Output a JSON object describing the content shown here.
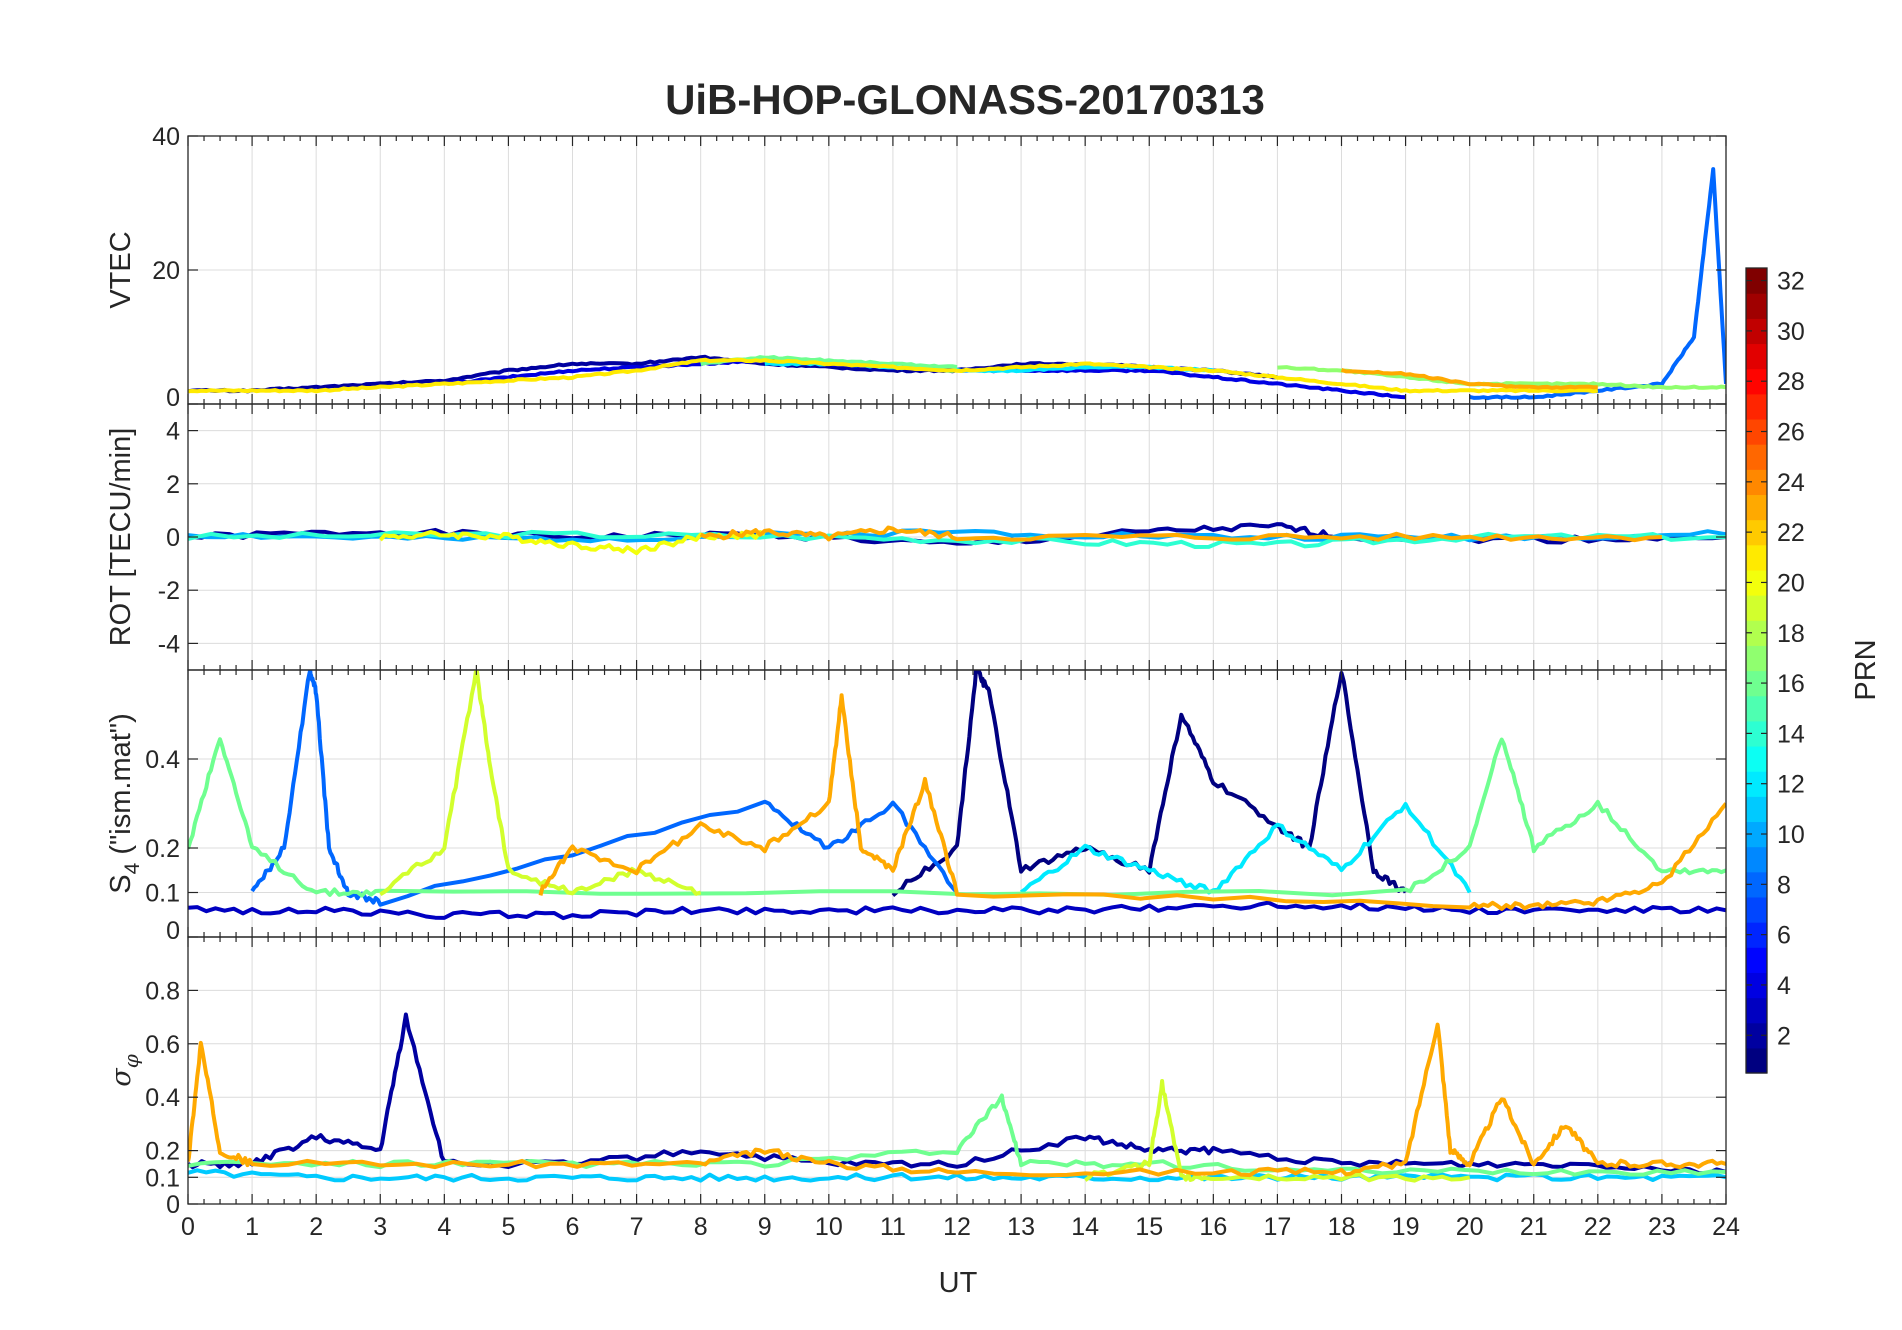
{
  "chart_data": {
    "type": "line",
    "title": "UiB-HOP-GLONASS-20170313",
    "xlabel": "UT",
    "xlim": [
      0,
      24
    ],
    "x_ticks": [
      "0",
      "1",
      "2",
      "3",
      "4",
      "5",
      "6",
      "7",
      "8",
      "9",
      "10",
      "11",
      "12",
      "13",
      "14",
      "15",
      "16",
      "17",
      "18",
      "19",
      "20",
      "21",
      "22",
      "23",
      "24"
    ],
    "grid": true,
    "panels": [
      {
        "id": "vtec",
        "ylabel": "VTEC",
        "ylim": [
          0,
          40
        ],
        "y_ticks": [
          0,
          20,
          40
        ],
        "y_tick_labels": [
          "0",
          "20",
          "40"
        ],
        "series": [
          {
            "prn": 2,
            "x": [
              0,
              1,
              2,
              3,
              4,
              5,
              6,
              7,
              8,
              9,
              10,
              11,
              12,
              13,
              14,
              15,
              16,
              17
            ],
            "y": [
              2,
              2,
              2.5,
              3,
              3.5,
              5,
              6,
              6,
              7,
              6,
              5.5,
              5,
              5,
              6,
              6,
              5.5,
              5,
              4
            ]
          },
          {
            "prn": 4,
            "x": [
              4,
              5,
              6,
              7,
              8,
              9,
              10,
              11,
              12,
              13,
              14,
              15,
              16,
              17,
              18,
              19
            ],
            "y": [
              3,
              4,
              5,
              5.5,
              6,
              6.5,
              6,
              5.5,
              5,
              5,
              5,
              5,
              4,
              3,
              2,
              1
            ]
          },
          {
            "prn": 8,
            "x": [
              20,
              21,
              22,
              23,
              23.5,
              23.8,
              24
            ],
            "y": [
              1,
              1,
              2,
              3,
              10,
              35,
              3
            ]
          },
          {
            "prn": 12,
            "x": [
              9,
              10,
              11,
              12,
              13,
              14,
              15,
              16
            ],
            "y": [
              6,
              6,
              5.5,
              5,
              5,
              5.5,
              5.5,
              5
            ]
          },
          {
            "prn": 16,
            "x": [
              8,
              9,
              10,
              11,
              12
            ],
            "y": [
              6,
              7,
              6.5,
              6,
              5.5
            ]
          },
          {
            "prn": 17,
            "x": [
              17,
              18,
              19,
              20,
              21,
              22,
              23,
              24
            ],
            "y": [
              5.5,
              5,
              4,
              3,
              3,
              3,
              2.5,
              2.5
            ]
          },
          {
            "prn": 21,
            "x": [
              0,
              1,
              2,
              3,
              4,
              5,
              6,
              7,
              8,
              9,
              10,
              11,
              12,
              13,
              14,
              15,
              16,
              17,
              18,
              19,
              20,
              21,
              22
            ],
            "y": [
              2,
              2,
              2,
              2.5,
              3,
              3.5,
              4,
              5,
              6.5,
              6.5,
              6,
              5.5,
              5,
              5.5,
              6,
              5.5,
              5,
              4,
              3,
              2,
              2,
              2,
              2
            ]
          },
          {
            "prn": 23,
            "x": [
              18,
              19,
              20,
              21,
              22
            ],
            "y": [
              5,
              4.5,
              3,
              2.5,
              2.5
            ]
          }
        ]
      },
      {
        "id": "rot",
        "ylabel": "ROT [TECU/min]",
        "ylim": [
          -5,
          5
        ],
        "y_ticks": [
          -4,
          -2,
          0,
          2,
          4
        ],
        "y_tick_labels": [
          "-4",
          "-2",
          "0",
          "2",
          "4"
        ],
        "series": [
          {
            "prn": 2,
            "x": [
              0,
              3,
              6,
              9,
              12,
              15,
              17,
              18,
              21,
              24
            ],
            "y": [
              0,
              0.2,
              0,
              0.1,
              -0.3,
              0.2,
              0.4,
              0,
              -0.1,
              0
            ]
          },
          {
            "prn": 10,
            "x": [
              0,
              4,
              8,
              12,
              16,
              20,
              24
            ],
            "y": [
              0.1,
              -0.1,
              0,
              0.2,
              0,
              0,
              0.1
            ]
          },
          {
            "prn": 14,
            "x": [
              0,
              5,
              10,
              14,
              17,
              20,
              24
            ],
            "y": [
              0,
              0.1,
              0,
              -0.2,
              -0.3,
              0,
              0
            ]
          },
          {
            "prn": 20,
            "x": [
              3,
              4,
              5,
              6,
              7,
              8,
              9
            ],
            "y": [
              0,
              0.1,
              0,
              -0.3,
              -0.5,
              0,
              0.1
            ]
          },
          {
            "prn": 23,
            "x": [
              8,
              9,
              10,
              11,
              12,
              16,
              20,
              23
            ],
            "y": [
              0,
              0.2,
              0,
              0.3,
              0,
              0,
              0,
              0
            ]
          }
        ]
      },
      {
        "id": "s4",
        "ylabel": "S4 (\"ism.mat\")",
        "ylabel_main": "S",
        "ylabel_sub": "4",
        "ylabel_rest": " (\"ism.mat\")",
        "ylim": [
          0,
          0.6
        ],
        "y_ticks": [
          0,
          0.1,
          0.2,
          0.4
        ],
        "y_tick_labels": [
          "0",
          "0.1",
          "0.2",
          "0.4"
        ],
        "series": [
          {
            "prn": 1,
            "x": [
              11,
              12,
              12.3,
              12.5,
              13,
              14,
              15,
              15.5,
              16,
              17,
              17.5,
              18,
              18.5,
              19
            ],
            "y": [
              0.1,
              0.2,
              0.6,
              0.55,
              0.15,
              0.2,
              0.15,
              0.5,
              0.35,
              0.25,
              0.2,
              0.6,
              0.15,
              0.1
            ]
          },
          {
            "prn": 3,
            "x": [
              0,
              2,
              4,
              6,
              8,
              10,
              12,
              14,
              16,
              18,
              20,
              22,
              24
            ],
            "y": [
              0.06,
              0.06,
              0.05,
              0.05,
              0.06,
              0.06,
              0.06,
              0.06,
              0.07,
              0.07,
              0.06,
              0.06,
              0.06
            ]
          },
          {
            "prn": 8,
            "x": [
              1,
              1.5,
              1.9,
              2,
              2.2,
              2.5,
              3,
              9,
              10,
              11,
              12
            ],
            "y": [
              0.1,
              0.2,
              0.6,
              0.55,
              0.2,
              0.1,
              0.08,
              0.3,
              0.2,
              0.3,
              0.1
            ]
          },
          {
            "prn": 12,
            "x": [
              13,
              14,
              15,
              16,
              17,
              18,
              19,
              20
            ],
            "y": [
              0.1,
              0.2,
              0.15,
              0.1,
              0.25,
              0.15,
              0.3,
              0.1
            ]
          },
          {
            "prn": 16,
            "x": [
              0,
              0.5,
              1,
              2,
              3,
              19,
              20,
              20.5,
              21,
              22,
              23,
              24
            ],
            "y": [
              0.2,
              0.45,
              0.2,
              0.1,
              0.1,
              0.1,
              0.2,
              0.45,
              0.2,
              0.3,
              0.15,
              0.15
            ]
          },
          {
            "prn": 19,
            "x": [
              3,
              4,
              4.5,
              4.7,
              5,
              6,
              7,
              8
            ],
            "y": [
              0.1,
              0.2,
              0.6,
              0.4,
              0.15,
              0.1,
              0.15,
              0.1
            ]
          },
          {
            "prn": 23,
            "x": [
              5.5,
              6,
              7,
              8,
              9,
              10,
              10.2,
              10.5,
              11,
              11.5,
              12,
              20,
              21,
              22,
              23,
              24
            ],
            "y": [
              0.1,
              0.2,
              0.15,
              0.25,
              0.2,
              0.3,
              0.54,
              0.2,
              0.15,
              0.35,
              0.1,
              0.07,
              0.07,
              0.08,
              0.12,
              0.3
            ]
          }
        ]
      },
      {
        "id": "sigma",
        "ylabel": "σφ",
        "ylabel_main": "σ",
        "ylabel_sub": "φ",
        "ylim": [
          0,
          1
        ],
        "y_ticks": [
          0,
          0.1,
          0.2,
          0.4,
          0.6,
          0.8
        ],
        "y_tick_labels": [
          "0",
          "0.1",
          "0.2",
          "0.4",
          "0.6",
          "0.8"
        ],
        "series": [
          {
            "prn": 2,
            "x": [
              0,
              1,
              2,
              3,
              3.4,
              4,
              6,
              8,
              10,
              12,
              14,
              15,
              16,
              18,
              20,
              22,
              24
            ],
            "y": [
              0.15,
              0.15,
              0.25,
              0.2,
              0.7,
              0.15,
              0.15,
              0.2,
              0.15,
              0.15,
              0.25,
              0.2,
              0.2,
              0.15,
              0.15,
              0.15,
              0.12
            ]
          },
          {
            "prn": 11,
            "x": [
              0,
              2,
              4,
              6,
              8,
              10,
              12,
              14,
              16,
              18,
              20,
              22,
              24
            ],
            "y": [
              0.12,
              0.1,
              0.1,
              0.1,
              0.1,
              0.1,
              0.1,
              0.1,
              0.1,
              0.1,
              0.1,
              0.1,
              0.1
            ]
          },
          {
            "prn": 16,
            "x": [
              0,
              3,
              6,
              9,
              12,
              12.7,
              13,
              15,
              18,
              21,
              24
            ],
            "y": [
              0.15,
              0.15,
              0.15,
              0.15,
              0.2,
              0.4,
              0.15,
              0.15,
              0.12,
              0.12,
              0.12
            ]
          },
          {
            "prn": 19,
            "x": [
              14,
              15,
              15.2,
              15.5,
              16,
              18,
              20
            ],
            "y": [
              0.1,
              0.15,
              0.45,
              0.1,
              0.1,
              0.1,
              0.1
            ]
          },
          {
            "prn": 23,
            "x": [
              0,
              0.2,
              0.5,
              1,
              5,
              8,
              9,
              10,
              12,
              16,
              18,
              19,
              19.5,
              19.7,
              20,
              20.5,
              21,
              21.5,
              22,
              23,
              24
            ],
            "y": [
              0.15,
              0.6,
              0.2,
              0.15,
              0.15,
              0.15,
              0.2,
              0.15,
              0.12,
              0.12,
              0.12,
              0.15,
              0.68,
              0.2,
              0.15,
              0.4,
              0.15,
              0.3,
              0.15,
              0.15,
              0.15
            ]
          }
        ]
      }
    ],
    "colorbar": {
      "label": "PRN",
      "colormap": "jet",
      "range": [
        1,
        32
      ],
      "tick_labels": [
        "2",
        "4",
        "6",
        "8",
        "10",
        "12",
        "14",
        "16",
        "18",
        "20",
        "22",
        "24",
        "26",
        "28",
        "30",
        "32"
      ]
    }
  }
}
